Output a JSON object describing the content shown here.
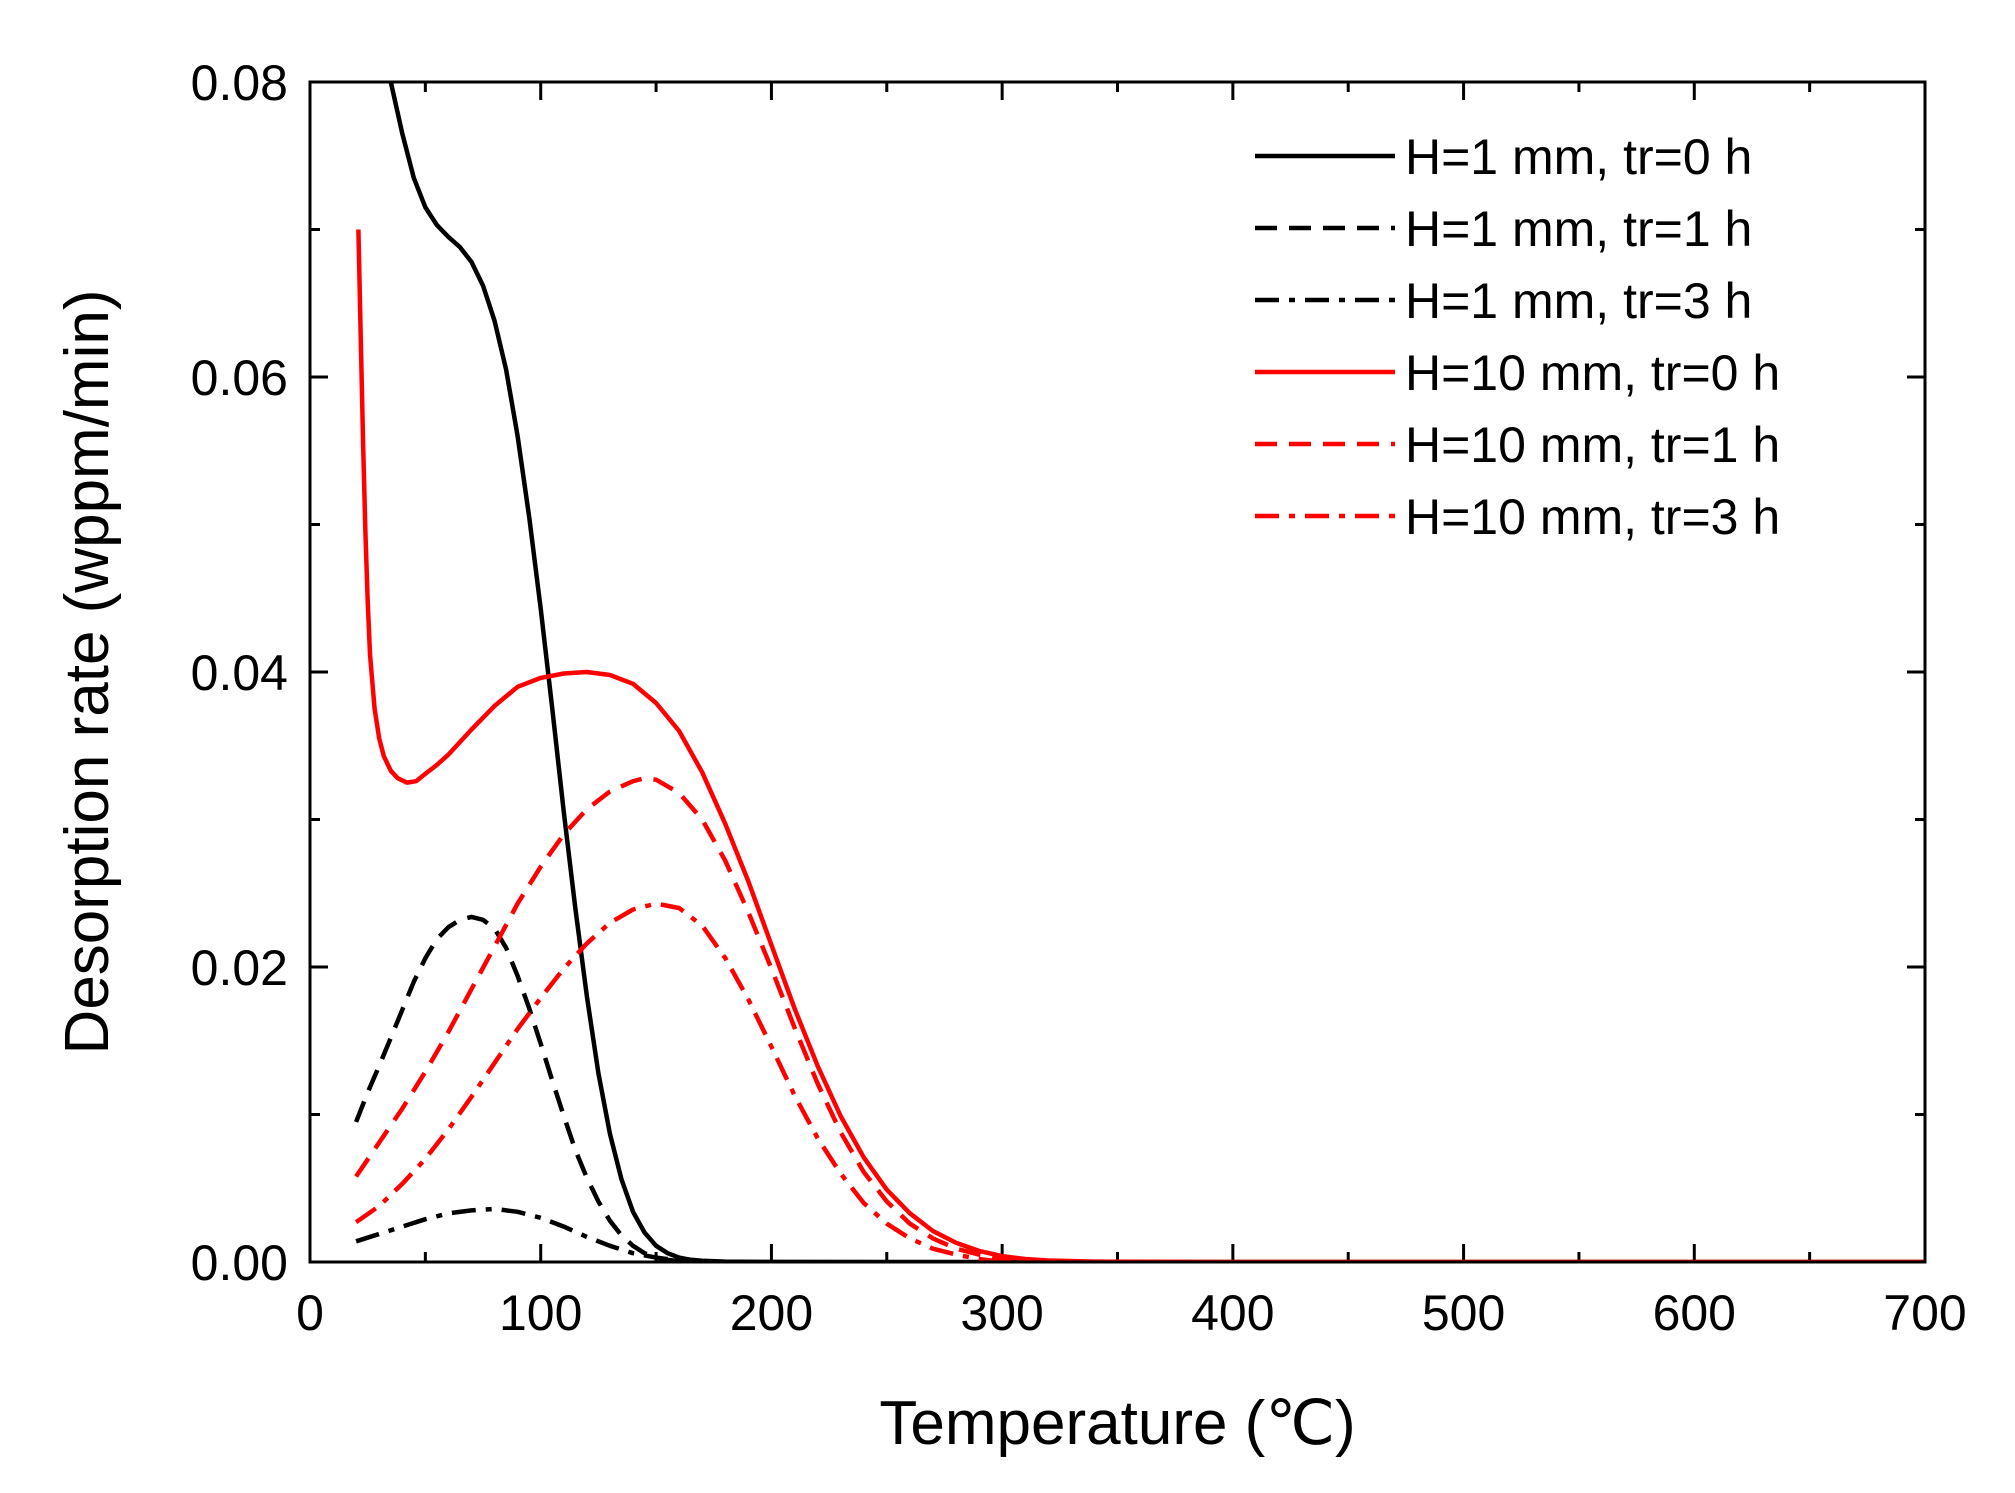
{
  "chart_data": {
    "type": "line",
    "title": "",
    "xlabel": "Temperature (℃)",
    "ylabel": "Desorption rate (wppm/min)",
    "xlim": [
      0,
      700
    ],
    "ylim": [
      0,
      0.08
    ],
    "xticks": [
      0,
      100,
      200,
      300,
      400,
      500,
      600,
      700
    ],
    "xtick_labels": [
      "0",
      "100",
      "200",
      "300",
      "400",
      "500",
      "600",
      "700"
    ],
    "yticks": [
      0,
      0.02,
      0.04,
      0.06,
      0.08
    ],
    "ytick_labels": [
      "0.00",
      "0.02",
      "0.04",
      "0.06",
      "0.08"
    ],
    "grid": false,
    "legend_position": "top-right",
    "series": [
      {
        "name": "H=1 mm, tr=0 h",
        "color": "#000000",
        "style": "solid",
        "x": [
          35,
          40,
          45,
          50,
          55,
          60,
          65,
          70,
          75,
          80,
          85,
          90,
          95,
          100,
          105,
          110,
          115,
          120,
          125,
          130,
          135,
          140,
          145,
          150,
          155,
          160,
          165,
          170,
          180,
          200,
          250,
          300,
          400,
          500,
          600,
          700
        ],
        "y": [
          0.08,
          0.0765,
          0.0735,
          0.0715,
          0.0703,
          0.0695,
          0.0688,
          0.0678,
          0.0662,
          0.0638,
          0.0605,
          0.056,
          0.0505,
          0.0443,
          0.0375,
          0.0305,
          0.024,
          0.018,
          0.0128,
          0.0087,
          0.0056,
          0.0034,
          0.002,
          0.0011,
          0.0006,
          0.0003,
          0.00015,
          8e-05,
          3e-05,
          1e-05,
          0,
          0,
          0,
          0,
          0,
          0
        ]
      },
      {
        "name": "H=1 mm, tr=1 h",
        "color": "#000000",
        "style": "dash",
        "x": [
          20,
          25,
          30,
          35,
          40,
          45,
          50,
          55,
          60,
          65,
          70,
          75,
          80,
          85,
          90,
          95,
          100,
          105,
          110,
          115,
          120,
          125,
          130,
          135,
          140,
          145,
          150,
          155,
          160,
          170,
          180
        ],
        "y": [
          0.0095,
          0.0115,
          0.0133,
          0.0152,
          0.0171,
          0.019,
          0.0206,
          0.0219,
          0.0227,
          0.0232,
          0.0234,
          0.0232,
          0.0226,
          0.0213,
          0.0194,
          0.0172,
          0.0148,
          0.0123,
          0.0099,
          0.0076,
          0.0057,
          0.0041,
          0.0028,
          0.0018,
          0.0011,
          0.0006,
          0.0003,
          0.00015,
          6e-05,
          2e-05,
          0
        ]
      },
      {
        "name": "H=1 mm, tr=3 h",
        "color": "#000000",
        "style": "dashdot",
        "x": [
          20,
          30,
          40,
          50,
          60,
          70,
          80,
          90,
          100,
          110,
          120,
          130,
          140,
          150,
          160,
          170
        ],
        "y": [
          0.0014,
          0.0019,
          0.0024,
          0.0029,
          0.0033,
          0.0035,
          0.0036,
          0.0034,
          0.003,
          0.0024,
          0.0017,
          0.0011,
          0.0006,
          0.0003,
          0.0001,
          0
        ]
      },
      {
        "name": "H=10 mm, tr=0 h",
        "color": "#ff0000",
        "style": "solid",
        "x": [
          21,
          22,
          23,
          24,
          25,
          26,
          28,
          30,
          32,
          35,
          38,
          42,
          46,
          50,
          55,
          60,
          70,
          80,
          90,
          100,
          110,
          120,
          130,
          140,
          150,
          160,
          170,
          180,
          190,
          200,
          210,
          220,
          230,
          240,
          250,
          260,
          270,
          280,
          290,
          300,
          310,
          320,
          340,
          400,
          500,
          600,
          700
        ],
        "y": [
          0.07,
          0.0625,
          0.0555,
          0.0495,
          0.0448,
          0.0412,
          0.0375,
          0.0355,
          0.0343,
          0.0333,
          0.0328,
          0.0325,
          0.0326,
          0.0331,
          0.0337,
          0.0344,
          0.0361,
          0.0377,
          0.039,
          0.0396,
          0.0399,
          0.04,
          0.0398,
          0.0392,
          0.0379,
          0.036,
          0.0332,
          0.0297,
          0.0258,
          0.0215,
          0.0172,
          0.0133,
          0.0099,
          0.0071,
          0.0049,
          0.0033,
          0.0021,
          0.0013,
          0.00075,
          0.0004,
          0.0002,
          0.0001,
          3e-05,
          0,
          0,
          0,
          0
        ]
      },
      {
        "name": "H=10 mm, tr=1 h",
        "color": "#ff0000",
        "style": "dash",
        "x": [
          20,
          30,
          40,
          50,
          60,
          70,
          80,
          90,
          100,
          110,
          120,
          130,
          140,
          145,
          150,
          160,
          170,
          180,
          190,
          200,
          210,
          220,
          230,
          240,
          250,
          260,
          270,
          280,
          290,
          300,
          320
        ],
        "y": [
          0.0058,
          0.0081,
          0.0104,
          0.0129,
          0.0156,
          0.0185,
          0.0214,
          0.0243,
          0.0268,
          0.029,
          0.0307,
          0.0319,
          0.0326,
          0.0328,
          0.0327,
          0.0318,
          0.03,
          0.0272,
          0.0237,
          0.0199,
          0.0159,
          0.0121,
          0.0088,
          0.0061,
          0.0041,
          0.0026,
          0.0016,
          0.0009,
          0.0005,
          0.0002,
          0
        ]
      },
      {
        "name": "H=10 mm, tr=3 h",
        "color": "#ff0000",
        "style": "dashdot",
        "x": [
          20,
          30,
          40,
          50,
          60,
          70,
          80,
          90,
          100,
          110,
          120,
          130,
          140,
          150,
          160,
          170,
          180,
          190,
          200,
          210,
          220,
          230,
          240,
          250,
          260,
          270,
          280,
          290,
          300
        ],
        "y": [
          0.0027,
          0.0038,
          0.0053,
          0.007,
          0.009,
          0.0112,
          0.0135,
          0.0158,
          0.0179,
          0.0199,
          0.0216,
          0.023,
          0.0239,
          0.0243,
          0.024,
          0.0228,
          0.0206,
          0.0178,
          0.0146,
          0.0113,
          0.0084,
          0.006,
          0.004,
          0.0026,
          0.0016,
          0.0009,
          0.0005,
          0.0002,
          0
        ]
      }
    ]
  }
}
